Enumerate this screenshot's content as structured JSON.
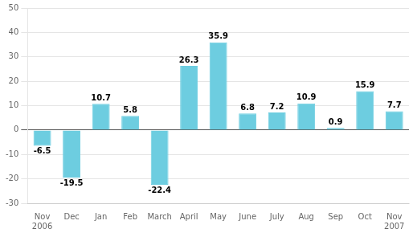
{
  "chart_data": {
    "type": "bar",
    "categories": [
      "Nov\n2006",
      "Dec",
      "Jan",
      "Feb",
      "March",
      "April",
      "May",
      "June",
      "July",
      "Aug",
      "Sep",
      "Oct",
      "Nov\n2007"
    ],
    "values": [
      -6.5,
      -19.5,
      10.7,
      5.8,
      -22.4,
      26.3,
      35.9,
      6.8,
      7.2,
      10.9,
      0.9,
      15.9,
      7.7
    ],
    "color": "#6DCDE0",
    "ylim": [
      -30,
      50
    ],
    "yticks": [
      -30,
      -20,
      -10,
      0,
      10,
      20,
      30,
      40,
      50
    ],
    "grid": true,
    "data_labels": true
  }
}
